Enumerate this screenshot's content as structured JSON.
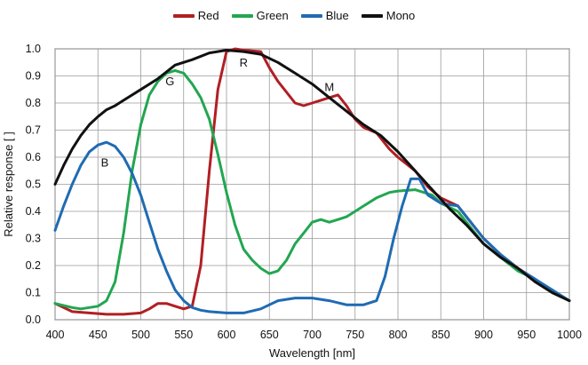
{
  "chart_data": {
    "type": "line",
    "title": "",
    "xlabel": "Wavelength [nm]",
    "ylabel": "Relative response [ ]",
    "xlim": [
      400,
      1000
    ],
    "ylim": [
      0,
      1.0
    ],
    "x_ticks": [
      "400",
      "450",
      "500",
      "550",
      "600",
      "650",
      "700",
      "750",
      "800",
      "850",
      "900",
      "950",
      "1000"
    ],
    "y_ticks": [
      "0.0",
      "0.1",
      "0.2",
      "0.3",
      "0.4",
      "0.5",
      "0.6",
      "0.7",
      "0.8",
      "0.9",
      "1.0"
    ],
    "grid": true,
    "legend_position": "top-center",
    "series": [
      {
        "name": "Red",
        "color": "#b01f24",
        "label": "R",
        "points": [
          [
            400,
            0.06
          ],
          [
            420,
            0.03
          ],
          [
            440,
            0.025
          ],
          [
            460,
            0.02
          ],
          [
            480,
            0.02
          ],
          [
            500,
            0.025
          ],
          [
            510,
            0.04
          ],
          [
            520,
            0.06
          ],
          [
            530,
            0.06
          ],
          [
            540,
            0.05
          ],
          [
            550,
            0.04
          ],
          [
            560,
            0.05
          ],
          [
            570,
            0.2
          ],
          [
            580,
            0.55
          ],
          [
            590,
            0.85
          ],
          [
            600,
            0.99
          ],
          [
            610,
            1.0
          ],
          [
            620,
            0.995
          ],
          [
            640,
            0.99
          ],
          [
            650,
            0.93
          ],
          [
            660,
            0.88
          ],
          [
            670,
            0.84
          ],
          [
            680,
            0.8
          ],
          [
            690,
            0.79
          ],
          [
            700,
            0.8
          ],
          [
            710,
            0.81
          ],
          [
            720,
            0.82
          ],
          [
            730,
            0.83
          ],
          [
            740,
            0.79
          ],
          [
            750,
            0.74
          ],
          [
            760,
            0.71
          ],
          [
            775,
            0.69
          ],
          [
            790,
            0.63
          ],
          [
            800,
            0.6
          ],
          [
            820,
            0.55
          ],
          [
            835,
            0.49
          ],
          [
            850,
            0.45
          ],
          [
            870,
            0.42
          ],
          [
            900,
            0.3
          ],
          [
            920,
            0.24
          ],
          [
            940,
            0.19
          ],
          [
            960,
            0.15
          ],
          [
            980,
            0.1
          ],
          [
            1000,
            0.07
          ]
        ]
      },
      {
        "name": "Green",
        "color": "#22a651",
        "label": "G",
        "points": [
          [
            400,
            0.06
          ],
          [
            420,
            0.045
          ],
          [
            430,
            0.04
          ],
          [
            440,
            0.045
          ],
          [
            450,
            0.05
          ],
          [
            460,
            0.07
          ],
          [
            470,
            0.14
          ],
          [
            480,
            0.32
          ],
          [
            490,
            0.55
          ],
          [
            500,
            0.72
          ],
          [
            510,
            0.83
          ],
          [
            520,
            0.88
          ],
          [
            530,
            0.91
          ],
          [
            540,
            0.92
          ],
          [
            550,
            0.91
          ],
          [
            560,
            0.87
          ],
          [
            570,
            0.82
          ],
          [
            580,
            0.74
          ],
          [
            590,
            0.61
          ],
          [
            600,
            0.47
          ],
          [
            610,
            0.35
          ],
          [
            620,
            0.26
          ],
          [
            630,
            0.22
          ],
          [
            640,
            0.19
          ],
          [
            650,
            0.17
          ],
          [
            660,
            0.18
          ],
          [
            670,
            0.22
          ],
          [
            680,
            0.28
          ],
          [
            690,
            0.32
          ],
          [
            700,
            0.36
          ],
          [
            710,
            0.37
          ],
          [
            720,
            0.36
          ],
          [
            730,
            0.37
          ],
          [
            740,
            0.38
          ],
          [
            750,
            0.4
          ],
          [
            760,
            0.42
          ],
          [
            775,
            0.45
          ],
          [
            790,
            0.47
          ],
          [
            800,
            0.475
          ],
          [
            820,
            0.48
          ],
          [
            840,
            0.46
          ],
          [
            850,
            0.43
          ],
          [
            870,
            0.4
          ],
          [
            900,
            0.28
          ],
          [
            920,
            0.23
          ],
          [
            940,
            0.18
          ],
          [
            960,
            0.15
          ],
          [
            980,
            0.1
          ],
          [
            1000,
            0.07
          ]
        ]
      },
      {
        "name": "Blue",
        "color": "#1f6bb3",
        "label": "B",
        "points": [
          [
            400,
            0.33
          ],
          [
            410,
            0.42
          ],
          [
            420,
            0.5
          ],
          [
            430,
            0.57
          ],
          [
            440,
            0.62
          ],
          [
            450,
            0.645
          ],
          [
            460,
            0.655
          ],
          [
            470,
            0.64
          ],
          [
            480,
            0.6
          ],
          [
            490,
            0.54
          ],
          [
            500,
            0.46
          ],
          [
            510,
            0.36
          ],
          [
            520,
            0.26
          ],
          [
            530,
            0.18
          ],
          [
            540,
            0.11
          ],
          [
            550,
            0.07
          ],
          [
            560,
            0.045
          ],
          [
            570,
            0.035
          ],
          [
            580,
            0.03
          ],
          [
            600,
            0.025
          ],
          [
            620,
            0.025
          ],
          [
            640,
            0.04
          ],
          [
            660,
            0.07
          ],
          [
            680,
            0.08
          ],
          [
            690,
            0.08
          ],
          [
            700,
            0.08
          ],
          [
            720,
            0.07
          ],
          [
            740,
            0.055
          ],
          [
            760,
            0.055
          ],
          [
            775,
            0.07
          ],
          [
            785,
            0.16
          ],
          [
            795,
            0.3
          ],
          [
            805,
            0.42
          ],
          [
            815,
            0.52
          ],
          [
            825,
            0.52
          ],
          [
            835,
            0.46
          ],
          [
            850,
            0.43
          ],
          [
            870,
            0.42
          ],
          [
            900,
            0.3
          ],
          [
            920,
            0.24
          ],
          [
            940,
            0.19
          ],
          [
            960,
            0.15
          ],
          [
            980,
            0.11
          ],
          [
            1000,
            0.07
          ]
        ]
      },
      {
        "name": "Mono",
        "color": "#111111",
        "label": "M",
        "points": [
          [
            400,
            0.5
          ],
          [
            410,
            0.57
          ],
          [
            420,
            0.63
          ],
          [
            430,
            0.68
          ],
          [
            440,
            0.72
          ],
          [
            450,
            0.75
          ],
          [
            460,
            0.775
          ],
          [
            470,
            0.79
          ],
          [
            480,
            0.81
          ],
          [
            500,
            0.85
          ],
          [
            520,
            0.89
          ],
          [
            540,
            0.94
          ],
          [
            560,
            0.96
          ],
          [
            580,
            0.985
          ],
          [
            600,
            0.995
          ],
          [
            620,
            0.99
          ],
          [
            640,
            0.98
          ],
          [
            660,
            0.95
          ],
          [
            680,
            0.91
          ],
          [
            700,
            0.87
          ],
          [
            720,
            0.82
          ],
          [
            740,
            0.77
          ],
          [
            760,
            0.72
          ],
          [
            780,
            0.68
          ],
          [
            800,
            0.62
          ],
          [
            820,
            0.55
          ],
          [
            840,
            0.48
          ],
          [
            860,
            0.41
          ],
          [
            880,
            0.35
          ],
          [
            900,
            0.28
          ],
          [
            920,
            0.23
          ],
          [
            940,
            0.19
          ],
          [
            960,
            0.14
          ],
          [
            980,
            0.1
          ],
          [
            1000,
            0.07
          ]
        ]
      }
    ],
    "annotations": [
      {
        "text": "R",
        "x": 620,
        "y": 0.935
      },
      {
        "text": "G",
        "x": 534,
        "y": 0.865
      },
      {
        "text": "B",
        "x": 458,
        "y": 0.565
      },
      {
        "text": "M",
        "x": 720,
        "y": 0.845
      }
    ]
  }
}
